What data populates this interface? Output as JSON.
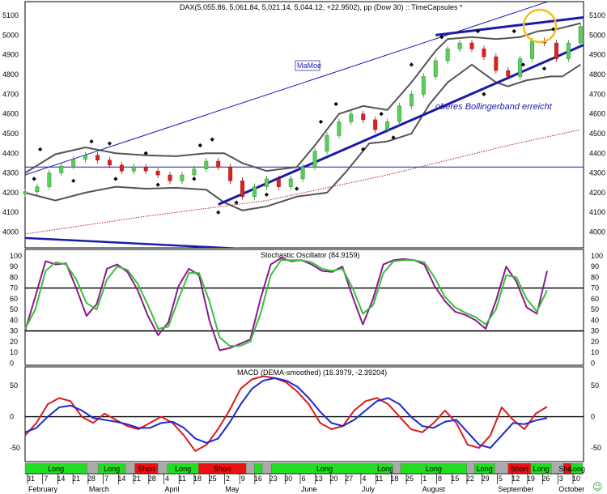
{
  "chart_data": [
    {
      "type": "candlestick",
      "title": "DAX(5,055.86, 5,061.84, 5,021.14, 5,044.12, +22.9502), pp (Dow 30) :: TimeCapsules *",
      "y_ticks": [
        4000,
        4100,
        4200,
        4300,
        4400,
        4500,
        4600,
        4700,
        4800,
        4900,
        5000,
        5100
      ],
      "ylim": [
        3920,
        5170
      ],
      "horizontal_line": 4330,
      "x_range": [
        0,
        185
      ],
      "close": [
        {
          "x": 0,
          "y": 4205
        },
        {
          "x": 4,
          "y": 4230
        },
        {
          "x": 8,
          "y": 4300
        },
        {
          "x": 12,
          "y": 4335
        },
        {
          "x": 16,
          "y": 4370
        },
        {
          "x": 20,
          "y": 4390
        },
        {
          "x": 24,
          "y": 4365
        },
        {
          "x": 28,
          "y": 4340
        },
        {
          "x": 32,
          "y": 4310
        },
        {
          "x": 36,
          "y": 4330
        },
        {
          "x": 40,
          "y": 4310
        },
        {
          "x": 44,
          "y": 4290
        },
        {
          "x": 48,
          "y": 4260
        },
        {
          "x": 52,
          "y": 4290
        },
        {
          "x": 56,
          "y": 4320
        },
        {
          "x": 60,
          "y": 4360
        },
        {
          "x": 64,
          "y": 4330
        },
        {
          "x": 68,
          "y": 4260
        },
        {
          "x": 72,
          "y": 4180
        },
        {
          "x": 76,
          "y": 4230
        },
        {
          "x": 80,
          "y": 4270
        },
        {
          "x": 84,
          "y": 4230
        },
        {
          "x": 88,
          "y": 4270
        },
        {
          "x": 92,
          "y": 4330
        },
        {
          "x": 96,
          "y": 4410
        },
        {
          "x": 100,
          "y": 4490
        },
        {
          "x": 104,
          "y": 4560
        },
        {
          "x": 108,
          "y": 4600
        },
        {
          "x": 112,
          "y": 4570
        },
        {
          "x": 116,
          "y": 4520
        },
        {
          "x": 120,
          "y": 4560
        },
        {
          "x": 124,
          "y": 4640
        },
        {
          "x": 128,
          "y": 4700
        },
        {
          "x": 132,
          "y": 4790
        },
        {
          "x": 136,
          "y": 4870
        },
        {
          "x": 140,
          "y": 4930
        },
        {
          "x": 144,
          "y": 4960
        },
        {
          "x": 148,
          "y": 4930
        },
        {
          "x": 152,
          "y": 4890
        },
        {
          "x": 156,
          "y": 4820
        },
        {
          "x": 160,
          "y": 4790
        },
        {
          "x": 164,
          "y": 4880
        },
        {
          "x": 168,
          "y": 4970
        },
        {
          "x": 172,
          "y": 4960
        },
        {
          "x": 176,
          "y": 4880
        },
        {
          "x": 180,
          "y": 4960
        },
        {
          "x": 184,
          "y": 5044
        }
      ],
      "bollinger_upper": [
        {
          "x": 0,
          "y": 4300
        },
        {
          "x": 10,
          "y": 4395
        },
        {
          "x": 20,
          "y": 4430
        },
        {
          "x": 30,
          "y": 4400
        },
        {
          "x": 40,
          "y": 4390
        },
        {
          "x": 50,
          "y": 4385
        },
        {
          "x": 60,
          "y": 4400
        },
        {
          "x": 66,
          "y": 4400
        },
        {
          "x": 72,
          "y": 4350
        },
        {
          "x": 80,
          "y": 4310
        },
        {
          "x": 90,
          "y": 4330
        },
        {
          "x": 96,
          "y": 4440
        },
        {
          "x": 104,
          "y": 4600
        },
        {
          "x": 112,
          "y": 4640
        },
        {
          "x": 120,
          "y": 4620
        },
        {
          "x": 128,
          "y": 4760
        },
        {
          "x": 136,
          "y": 4920
        },
        {
          "x": 140,
          "y": 4980
        },
        {
          "x": 148,
          "y": 4990
        },
        {
          "x": 156,
          "y": 4980
        },
        {
          "x": 164,
          "y": 4990
        },
        {
          "x": 170,
          "y": 5020
        },
        {
          "x": 176,
          "y": 5030
        },
        {
          "x": 184,
          "y": 5060
        }
      ],
      "bollinger_lower": [
        {
          "x": 0,
          "y": 4200
        },
        {
          "x": 10,
          "y": 4160
        },
        {
          "x": 20,
          "y": 4200
        },
        {
          "x": 30,
          "y": 4230
        },
        {
          "x": 40,
          "y": 4220
        },
        {
          "x": 50,
          "y": 4225
        },
        {
          "x": 60,
          "y": 4215
        },
        {
          "x": 66,
          "y": 4150
        },
        {
          "x": 72,
          "y": 4110
        },
        {
          "x": 80,
          "y": 4130
        },
        {
          "x": 90,
          "y": 4180
        },
        {
          "x": 100,
          "y": 4200
        },
        {
          "x": 106,
          "y": 4300
        },
        {
          "x": 114,
          "y": 4450
        },
        {
          "x": 120,
          "y": 4460
        },
        {
          "x": 128,
          "y": 4500
        },
        {
          "x": 134,
          "y": 4650
        },
        {
          "x": 140,
          "y": 4760
        },
        {
          "x": 148,
          "y": 4850
        },
        {
          "x": 156,
          "y": 4760
        },
        {
          "x": 160,
          "y": 4740
        },
        {
          "x": 166,
          "y": 4770
        },
        {
          "x": 174,
          "y": 4790
        },
        {
          "x": 178,
          "y": 4790
        },
        {
          "x": 184,
          "y": 4850
        }
      ],
      "moving_average_dotted": [
        {
          "x": 0,
          "y": 3990
        },
        {
          "x": 40,
          "y": 4080
        },
        {
          "x": 80,
          "y": 4160
        },
        {
          "x": 120,
          "y": 4290
        },
        {
          "x": 160,
          "y": 4440
        },
        {
          "x": 184,
          "y": 4520
        }
      ],
      "trend_channel_upper": [
        {
          "x": 0,
          "y": 4290
        },
        {
          "x": 185,
          "y": 5230
        }
      ],
      "trend_support": [
        {
          "x": 64,
          "y": 4140
        },
        {
          "x": 185,
          "y": 4950
        }
      ],
      "resistance_line": [
        {
          "x": 136,
          "y": 5000
        },
        {
          "x": 185,
          "y": 5090
        }
      ],
      "falling_line": [
        {
          "x": 0,
          "y": 3970
        },
        {
          "x": 92,
          "y": 3900
        }
      ],
      "dots_above": [
        {
          "x": 5,
          "y": 4420
        },
        {
          "x": 22,
          "y": 4460
        },
        {
          "x": 28,
          "y": 4450
        },
        {
          "x": 40,
          "y": 4400
        },
        {
          "x": 58,
          "y": 4440
        },
        {
          "x": 62,
          "y": 4470
        },
        {
          "x": 98,
          "y": 4560
        },
        {
          "x": 103,
          "y": 4650
        },
        {
          "x": 118,
          "y": 4600
        },
        {
          "x": 128,
          "y": 4850
        },
        {
          "x": 138,
          "y": 4990
        },
        {
          "x": 150,
          "y": 5020
        },
        {
          "x": 162,
          "y": 5020
        },
        {
          "x": 175,
          "y": 5030
        }
      ],
      "dots_below": [
        {
          "x": 3,
          "y": 4270
        },
        {
          "x": 16,
          "y": 4260
        },
        {
          "x": 30,
          "y": 4270
        },
        {
          "x": 44,
          "y": 4240
        },
        {
          "x": 56,
          "y": 4270
        },
        {
          "x": 64,
          "y": 4100
        },
        {
          "x": 70,
          "y": 4150
        },
        {
          "x": 80,
          "y": 4190
        },
        {
          "x": 90,
          "y": 4220
        },
        {
          "x": 112,
          "y": 4420
        },
        {
          "x": 122,
          "y": 4480
        },
        {
          "x": 152,
          "y": 4700
        },
        {
          "x": 165,
          "y": 4850
        },
        {
          "x": 172,
          "y": 4830
        }
      ],
      "annotations": {
        "label_a": "MaMoe",
        "label_b": "oberes Bollingerband erreicht"
      },
      "colors": {
        "trend": "#1a1aaa",
        "highlight": "#f0c020",
        "up": "#5ad05a",
        "down": "#dd2222",
        "band": "#555555",
        "ma": "#aa2222"
      }
    },
    {
      "type": "line",
      "title": "Stochastic Oscillator (84.9159)",
      "y_ticks": [
        0,
        10,
        20,
        30,
        40,
        50,
        60,
        70,
        80,
        90,
        100
      ],
      "ylim": [
        -2,
        106
      ],
      "reference_lines": [
        30,
        70
      ],
      "series": [
        {
          "values": [
            30,
            62,
            95,
            92,
            93,
            70,
            44,
            55,
            88,
            92,
            85,
            68,
            44,
            26,
            38,
            72,
            88,
            82,
            40,
            12,
            14,
            18,
            22,
            60,
            92,
            98,
            95,
            96,
            92,
            86,
            85,
            90,
            62,
            36,
            60,
            92,
            96,
            97,
            96,
            92,
            72,
            58,
            48,
            45,
            40,
            32,
            58,
            90,
            76,
            52,
            46,
            86
          ],
          "color": "#8a1a8a"
        },
        {
          "values": [
            32,
            50,
            86,
            94,
            92,
            78,
            56,
            50,
            78,
            90,
            87,
            74,
            54,
            32,
            34,
            60,
            84,
            84,
            58,
            24,
            16,
            16,
            20,
            46,
            82,
            96,
            96,
            96,
            94,
            88,
            86,
            88,
            70,
            46,
            54,
            84,
            95,
            96,
            96,
            94,
            80,
            62,
            52,
            47,
            43,
            36,
            50,
            82,
            80,
            60,
            48,
            68
          ],
          "color": "#3ac03a"
        }
      ]
    },
    {
      "type": "line",
      "title": "MACD (DEMA-smoothed) (16.3979, -2.39204)",
      "y_ticks": [
        -50,
        0,
        50
      ],
      "ylim": [
        -72,
        80
      ],
      "reference_lines": [
        0
      ],
      "series": [
        {
          "values": [
            -30,
            -10,
            20,
            30,
            25,
            0,
            -10,
            5,
            -5,
            -15,
            -20,
            -10,
            0,
            -10,
            -30,
            -55,
            -45,
            -20,
            10,
            45,
            60,
            65,
            62,
            55,
            40,
            20,
            -10,
            -20,
            -15,
            10,
            25,
            30,
            20,
            0,
            -20,
            -25,
            -10,
            10,
            -10,
            -45,
            -50,
            -30,
            15,
            -5,
            -20,
            5,
            16
          ],
          "color": "#dd1a1a"
        },
        {
          "values": [
            -25,
            -18,
            0,
            15,
            18,
            10,
            -2,
            -5,
            -8,
            -12,
            -18,
            -18,
            -10,
            -8,
            -18,
            -35,
            -42,
            -35,
            -10,
            20,
            45,
            58,
            62,
            58,
            48,
            30,
            8,
            -10,
            -15,
            -5,
            10,
            25,
            30,
            20,
            0,
            -15,
            -18,
            -8,
            -5,
            -25,
            -45,
            -50,
            -30,
            -10,
            -12,
            -6,
            -2
          ],
          "color": "#1a2ad0"
        }
      ]
    }
  ],
  "signals": [
    {
      "label": "Long",
      "color": "#22dd22",
      "start": 0.0,
      "end": 0.157
    },
    {
      "label": "",
      "color": "#aaaaaa",
      "start": 0.157,
      "end": 0.186
    },
    {
      "label": "Long",
      "color": "#22dd22",
      "start": 0.186,
      "end": 0.255
    },
    {
      "label": "",
      "color": "#aaaaaa",
      "start": 0.255,
      "end": 0.279
    },
    {
      "label": "Short",
      "color": "#ee1111",
      "start": 0.279,
      "end": 0.338
    },
    {
      "label": "",
      "color": "#aaaaaa",
      "start": 0.338,
      "end": 0.362
    },
    {
      "label": "Long",
      "color": "#22dd22",
      "start": 0.362,
      "end": 0.441
    },
    {
      "label": "Short",
      "color": "#ee1111",
      "start": 0.441,
      "end": 0.562
    },
    {
      "label": "",
      "color": "#aaaaaa",
      "start": 0.562,
      "end": 0.583
    },
    {
      "label": "",
      "color": "#22dd22",
      "start": 0.583,
      "end": 0.603
    },
    {
      "label": "",
      "color": "#aaaaaa",
      "start": 0.603,
      "end": 0.626
    },
    {
      "label": "Long",
      "color": "#22dd22",
      "start": 0.626,
      "end": 0.897
    },
    {
      "label": "Long",
      "color": "#22dd22",
      "start": 0.897,
      "end": 0.935
    },
    {
      "label": "",
      "color": "#aaaaaa",
      "start": 0.935,
      "end": 0.955
    },
    {
      "label": "Long",
      "color": "#22dd22",
      "start": 0.955,
      "end": 1.123
    },
    {
      "label": "",
      "color": "#aaaaaa",
      "start": 1.123,
      "end": 1.143
    },
    {
      "label": "Long",
      "color": "#22dd22",
      "start": 1.143,
      "end": 1.194
    },
    {
      "label": "",
      "color": "#aaaaaa",
      "start": 1.194,
      "end": 1.228
    },
    {
      "label": "Short",
      "color": "#ee1111",
      "start": 1.228,
      "end": 1.286
    },
    {
      "label": "Long",
      "color": "#22dd22",
      "start": 1.286,
      "end": 1.338
    },
    {
      "label": "",
      "color": "#aaaaaa",
      "start": 1.338,
      "end": 1.369
    },
    {
      "label": "Short",
      "color": "#ee1111",
      "start": 1.369,
      "end": 1.389
    },
    {
      "label": "Long",
      "color": "#22dd22",
      "start": 1.389,
      "end": 1.418
    }
  ],
  "x_axis": {
    "days": [
      "31",
      "7",
      "14",
      "21",
      "28",
      "7",
      "14",
      "21",
      "28",
      "4",
      "11",
      "18",
      "25",
      "2",
      "9",
      "16",
      "23",
      "30",
      "6",
      "13",
      "20",
      "27",
      "4",
      "11",
      "18",
      "25",
      "1",
      "8",
      "15",
      "22",
      "29",
      "5",
      "12",
      "19",
      "26",
      "3",
      "10"
    ],
    "months": [
      {
        "label": "February",
        "day_index": 0
      },
      {
        "label": "March",
        "day_index": 4
      },
      {
        "label": "April",
        "day_index": 9
      },
      {
        "label": "May",
        "day_index": 13
      },
      {
        "label": "June",
        "day_index": 18
      },
      {
        "label": "July",
        "day_index": 22
      },
      {
        "label": "August",
        "day_index": 26
      },
      {
        "label": "September",
        "day_index": 31
      },
      {
        "label": "October",
        "day_index": 35
      }
    ]
  }
}
